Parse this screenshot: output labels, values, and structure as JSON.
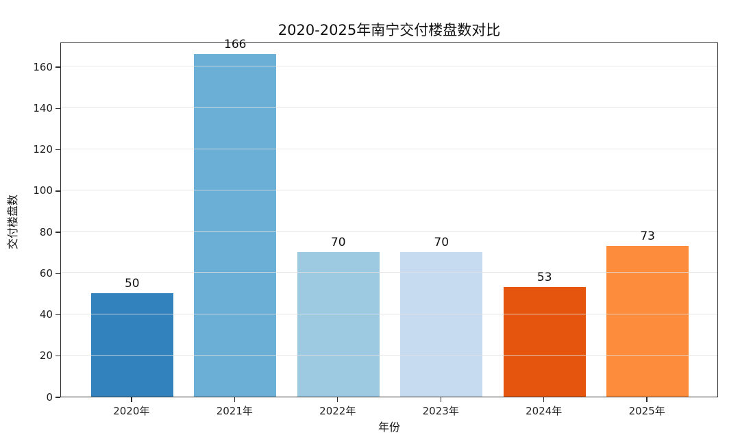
{
  "chart_data": {
    "type": "bar",
    "title": "2020-2025年南宁交付楼盘数对比",
    "categories": [
      "2020年",
      "2021年",
      "2022年",
      "2023年",
      "2024年",
      "2025年"
    ],
    "values": [
      50,
      166,
      70,
      70,
      53,
      73
    ],
    "bar_colors": [
      "#3182bd",
      "#6baed6",
      "#9ecae1",
      "#c6dbef",
      "#e6550d",
      "#fd8d3c"
    ],
    "xlabel": "年份",
    "ylabel": "交付楼盘数",
    "yticks": [
      0,
      20,
      40,
      60,
      80,
      100,
      120,
      140,
      160
    ],
    "ylim": [
      0,
      172
    ],
    "xlim": [
      -0.69,
      5.69
    ],
    "bar_width": 0.8,
    "grid": "horizontal-light",
    "legend": "none",
    "spine_color": "#2e2e2e",
    "background": "#ffffff"
  }
}
